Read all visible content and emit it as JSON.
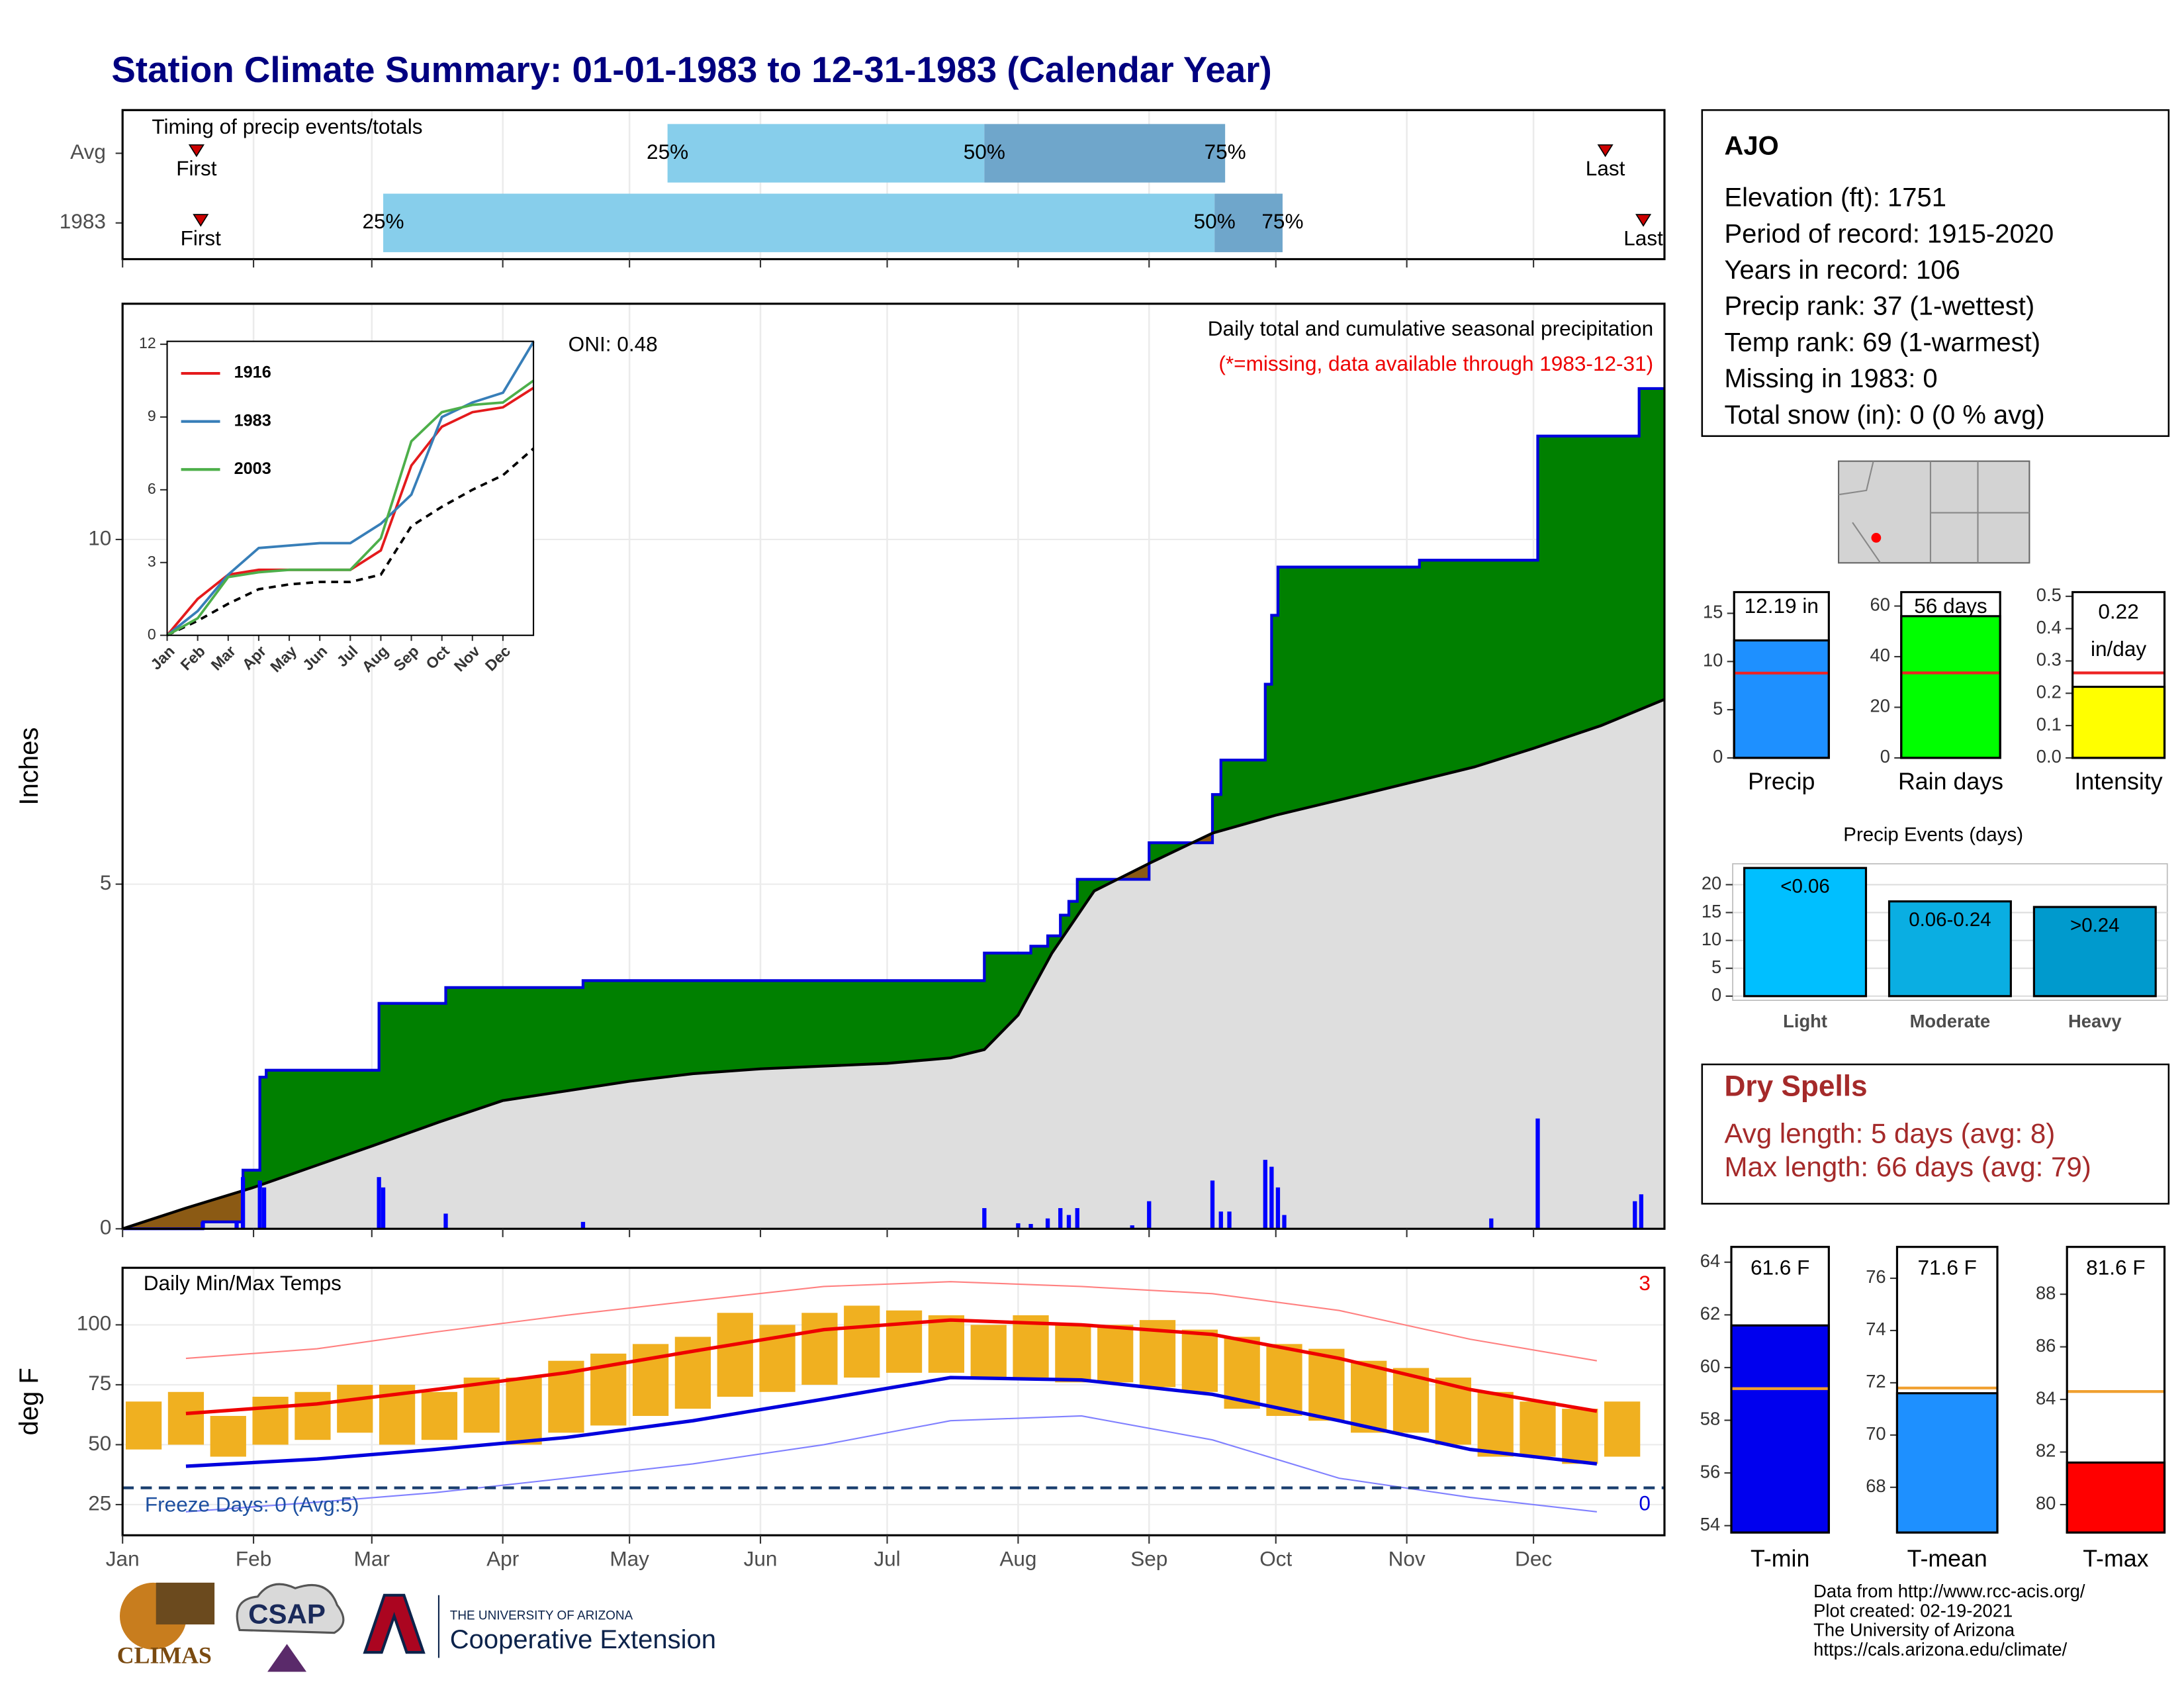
{
  "title": "Station Climate Summary: 01-01-1983 to 12-31-1983 (Calendar Year)",
  "chart_data": [
    {
      "type": "timing",
      "title": "Timing of precip events/totals",
      "categories": [
        "Avg",
        "1983"
      ],
      "first": [
        17.5,
        18.5
      ],
      "p25": [
        129,
        61.7
      ],
      "p50": [
        204,
        258.5
      ],
      "p75": [
        261,
        274.6
      ],
      "last": [
        351,
        360
      ],
      "marker_labels": {
        "first": "First",
        "last": "Last",
        "p25": "25%",
        "p50": "50%",
        "p75": "75%"
      },
      "colors": {
        "early": "#87ceeb",
        "late": "#6fa6cb",
        "marker": "#cc0000"
      },
      "xlim": [
        0,
        365
      ]
    },
    {
      "type": "area",
      "title": "Daily total and cumulative seasonal precipitation",
      "subtitle": "(*=missing, data available through 1983-12-31)",
      "annotation": "ONI: 0.48",
      "ylabel": "Inches",
      "xlim": [
        0,
        365
      ],
      "xticks": [
        {
          "value": 0,
          "label": "Jan"
        },
        {
          "value": 31,
          "label": "Feb"
        },
        {
          "value": 59,
          "label": "Mar"
        },
        {
          "value": 90,
          "label": "Apr"
        },
        {
          "value": 120,
          "label": "May"
        },
        {
          "value": 151,
          "label": "Jun"
        },
        {
          "value": 181,
          "label": "Jul"
        },
        {
          "value": 212,
          "label": "Aug"
        },
        {
          "value": 243,
          "label": "Sep"
        },
        {
          "value": 273,
          "label": "Oct"
        },
        {
          "value": 304,
          "label": "Nov"
        },
        {
          "value": 334,
          "label": "Dec"
        }
      ],
      "ylim": [
        0,
        13.42
      ],
      "yticks": [
        0,
        5,
        10
      ],
      "observed": {
        "color": "#008000",
        "line": "#0000dd",
        "x": [
          0,
          19,
          19,
          28.5,
          28.5,
          32.5,
          32.5,
          34,
          34,
          60.7,
          60.7,
          76.5,
          76.5,
          109,
          109,
          204,
          204,
          215,
          215,
          219,
          219,
          222,
          222,
          224,
          224,
          226,
          226,
          243,
          243,
          258,
          258,
          260,
          260,
          270.5,
          270.5,
          272,
          272,
          273.5,
          273.5,
          307,
          307,
          335,
          335,
          359,
          359,
          365
        ],
        "values": [
          0,
          0,
          0.1,
          0.1,
          0.85,
          0.85,
          2.2,
          2.2,
          2.3,
          2.3,
          3.27,
          3.27,
          3.5,
          3.5,
          3.6,
          3.6,
          4.0,
          4.0,
          4.1,
          4.1,
          4.25,
          4.25,
          4.55,
          4.55,
          4.75,
          4.75,
          5.07,
          5.07,
          5.6,
          5.6,
          6.3,
          6.3,
          6.8,
          6.8,
          7.9,
          7.9,
          8.9,
          8.9,
          9.6,
          9.6,
          9.7,
          9.7,
          11.5,
          11.5,
          12.19,
          12.19
        ]
      },
      "average": {
        "color": "#dedede",
        "deficit_color": "#8b5a14",
        "x": [
          0,
          15,
          31,
          45,
          59,
          75,
          90,
          105,
          120,
          135,
          151,
          166,
          181,
          196,
          204,
          212,
          220,
          230,
          243,
          258,
          273,
          290,
          304,
          320,
          334,
          350,
          365
        ],
        "values": [
          0,
          0.3,
          0.6,
          0.9,
          1.2,
          1.55,
          1.86,
          2.0,
          2.14,
          2.25,
          2.32,
          2.36,
          2.4,
          2.48,
          2.6,
          3.1,
          4.0,
          4.9,
          5.3,
          5.74,
          6.0,
          6.25,
          6.46,
          6.7,
          6.97,
          7.3,
          7.68
        ]
      },
      "daily": {
        "color": "#0000ff",
        "x": [
          19,
          27,
          28.5,
          32.5,
          33.5,
          60.7,
          61.7,
          76.5,
          109,
          204,
          212,
          215,
          219,
          222,
          224,
          226,
          239,
          243,
          258,
          260,
          262,
          270.5,
          272,
          273.5,
          275,
          324,
          335,
          358,
          359.5
        ],
        "values": [
          0.1,
          0.1,
          0.75,
          0.7,
          0.6,
          0.75,
          0.6,
          0.22,
          0.1,
          0.3,
          0.08,
          0.07,
          0.15,
          0.3,
          0.2,
          0.3,
          0.05,
          0.4,
          0.7,
          0.25,
          0.25,
          1.0,
          0.9,
          0.6,
          0.2,
          0.15,
          1.6,
          0.4,
          0.5
        ]
      }
    },
    {
      "type": "line",
      "xlim": [
        0,
        12
      ],
      "ylim": [
        0,
        12.12
      ],
      "yticks": [
        0,
        3,
        6,
        9,
        12
      ],
      "xticks": [
        {
          "value": 0,
          "label": "Jan"
        },
        {
          "value": 1,
          "label": "Feb"
        },
        {
          "value": 2,
          "label": "Mar"
        },
        {
          "value": 3,
          "label": "Apr"
        },
        {
          "value": 4,
          "label": "May"
        },
        {
          "value": 5,
          "label": "Jun"
        },
        {
          "value": 6,
          "label": "Jul"
        },
        {
          "value": 7,
          "label": "Aug"
        },
        {
          "value": 8,
          "label": "Sep"
        },
        {
          "value": 9,
          "label": "Oct"
        },
        {
          "value": 10,
          "label": "Nov"
        },
        {
          "value": 11,
          "label": "Dec"
        }
      ],
      "x": [
        0,
        1,
        2,
        3,
        4,
        5,
        6,
        7,
        8,
        9,
        10,
        11,
        12
      ],
      "series": [
        {
          "name": "1916",
          "color": "#e41a1c",
          "values": [
            0,
            1.5,
            2.5,
            2.7,
            2.7,
            2.7,
            2.7,
            3.5,
            7,
            8.6,
            9.2,
            9.4,
            10.2
          ]
        },
        {
          "name": "1983",
          "color": "#377eb8",
          "values": [
            0,
            1,
            2.5,
            3.6,
            3.7,
            3.8,
            3.8,
            4.6,
            5.8,
            9,
            9.6,
            10,
            12.1
          ]
        },
        {
          "name": "2003",
          "color": "#4daf4a",
          "values": [
            0,
            0.7,
            2.4,
            2.6,
            2.7,
            2.7,
            2.7,
            4,
            8,
            9.2,
            9.5,
            9.6,
            10.5
          ]
        }
      ],
      "average": {
        "color": "#000000",
        "values": [
          0,
          0.6,
          1.3,
          1.9,
          2.1,
          2.2,
          2.2,
          2.5,
          4.5,
          5.3,
          6,
          6.6,
          7.7
        ]
      }
    },
    {
      "type": "range",
      "title": "Daily Min/Max Temps",
      "ylabel": "deg F",
      "ylim": [
        12.2,
        123.8
      ],
      "yticks": [
        25,
        50,
        75,
        100
      ],
      "freeze": {
        "value": 32,
        "label": "Freeze Days: 0 (Avg:5)"
      },
      "high_records": 3,
      "low_records": 0,
      "daily": {
        "color": "#f0b020",
        "x": [
          5,
          15,
          25,
          35,
          45,
          55,
          65,
          75,
          85,
          95,
          105,
          115,
          125,
          135,
          145,
          155,
          165,
          175,
          185,
          195,
          205,
          215,
          225,
          235,
          245,
          255,
          265,
          275,
          285,
          295,
          305,
          315,
          325,
          335,
          345,
          355
        ],
        "min": [
          48,
          50,
          45,
          50,
          52,
          55,
          50,
          52,
          55,
          50,
          55,
          58,
          62,
          65,
          70,
          72,
          75,
          78,
          80,
          80,
          78,
          78,
          76,
          76,
          74,
          72,
          65,
          62,
          60,
          55,
          55,
          50,
          45,
          45,
          42,
          45
        ],
        "max": [
          68,
          72,
          62,
          70,
          72,
          75,
          75,
          72,
          78,
          78,
          85,
          88,
          92,
          95,
          105,
          100,
          105,
          108,
          106,
          104,
          100,
          104,
          100,
          100,
          102,
          98,
          95,
          92,
          90,
          85,
          82,
          78,
          72,
          68,
          65,
          68
        ]
      },
      "normals": {
        "x": [
          15,
          46,
          74,
          105,
          135,
          166,
          196,
          227,
          258,
          288,
          319,
          349
        ],
        "max": [
          63,
          67,
          73,
          80,
          89,
          98,
          102,
          100,
          96,
          86,
          73,
          64
        ],
        "min": [
          41,
          44,
          48,
          53,
          60,
          69,
          78,
          77,
          71,
          60,
          48,
          42
        ],
        "record_high": [
          86,
          90,
          97,
          104,
          110,
          116,
          118,
          116,
          113,
          106,
          94,
          85
        ],
        "record_low": [
          22,
          26,
          30,
          36,
          42,
          50,
          60,
          62,
          52,
          36,
          28,
          22
        ],
        "colors": {
          "max": "#ee0000",
          "min": "#0000dd",
          "record_high": "#ff8080",
          "record_low": "#8080ff"
        }
      }
    },
    {
      "type": "bar",
      "categories": [
        "Precip"
      ],
      "values": [
        12.19
      ],
      "value_labels": [
        "12.19 in"
      ],
      "average": [
        8.8
      ],
      "color": "#1e90ff",
      "average_color": "#ee2222",
      "ylim": [
        0,
        17.2
      ],
      "yticks": [
        0,
        5,
        10,
        15
      ]
    },
    {
      "type": "bar",
      "categories": [
        "Rain days"
      ],
      "values": [
        56
      ],
      "value_labels": [
        "56 days"
      ],
      "average": [
        33.6
      ],
      "color": "#00ff00",
      "average_color": "#ee2222",
      "ylim": [
        0,
        65.5
      ],
      "yticks": [
        0,
        20,
        40,
        60
      ]
    },
    {
      "type": "bar",
      "categories": [
        "Intensity"
      ],
      "values": [
        0.22
      ],
      "value_labels": [
        "0.22"
      ],
      "unit": "in/day",
      "average": [
        0.263
      ],
      "color": "#ffff00",
      "average_color": "#ee2222",
      "ylim": [
        0,
        0.513
      ],
      "yticks": [
        {
          "value": 0,
          "label": "0.0"
        },
        0.1,
        0.2,
        0.3,
        0.4,
        0.5
      ]
    },
    {
      "type": "bar",
      "title": "Precip Events (days)",
      "categories": [
        "Light",
        "Moderate",
        "Heavy"
      ],
      "values": [
        23,
        17,
        16
      ],
      "bin_labels": [
        "<0.06",
        "0.06-0.24",
        ">0.24"
      ],
      "colors": [
        "#00bfff",
        "#0aaee2",
        "#009acd"
      ],
      "ylim": [
        -0.75,
        23.75
      ],
      "yticks": [
        0,
        5,
        10,
        15,
        20
      ],
      "grid": true
    },
    {
      "type": "bar",
      "categories": [
        "T-min"
      ],
      "values": [
        61.6
      ],
      "value_labels": [
        "61.6 F"
      ],
      "average": [
        59.2
      ],
      "color": "#0000ee",
      "average_color": "#f0a030",
      "ylim": [
        53.74,
        64.58
      ],
      "yticks": [
        54,
        56,
        58,
        60,
        62,
        64
      ]
    },
    {
      "type": "bar",
      "categories": [
        "T-mean"
      ],
      "values": [
        71.6
      ],
      "value_labels": [
        "71.6 F"
      ],
      "average": [
        71.8
      ],
      "color": "#1e90ff",
      "average_color": "#f0a030",
      "ylim": [
        66.27,
        77.2
      ],
      "yticks": [
        68,
        70,
        72,
        74,
        76
      ]
    },
    {
      "type": "bar",
      "categories": [
        "T-max"
      ],
      "values": [
        81.6
      ],
      "value_labels": [
        "81.6 F"
      ],
      "average": [
        84.3
      ],
      "color": "#ff0000",
      "average_color": "#f0a030",
      "ylim": [
        78.94,
        89.8
      ],
      "yticks": [
        80,
        82,
        84,
        86,
        88
      ]
    }
  ],
  "station": {
    "name": "AJO",
    "lines": [
      "Elevation (ft): 1751",
      "Period of record: 1915-2020",
      "Years in record: 106",
      "Precip rank: 37 (1-wettest)",
      "Temp rank: 69 (1-warmest)",
      "Missing in 1983: 0",
      "Total snow (in): 0 (0 % avg)"
    ]
  },
  "dry_spells": {
    "title": "Dry Spells",
    "lines": [
      "Avg length: 5 days (avg: 8)",
      "Max length: 66 days (avg: 79)"
    ]
  },
  "logos": {
    "climas": "CLIMAS",
    "csap": "CSAP",
    "university": "THE UNIVERSITY OF ARIZONA",
    "extension": "Cooperative Extension"
  },
  "credits": [
    "Data from http://www.rcc-acis.org/",
    "Plot created: 02-19-2021",
    "The University of Arizona",
    "https://cals.arizona.edu/climate/"
  ]
}
